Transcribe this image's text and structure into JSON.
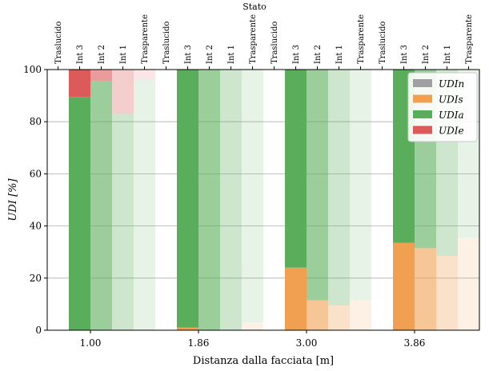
{
  "chart_data": {
    "type": "bar",
    "stacked": true,
    "top_axis_label": "Stato",
    "xlabel": "Distanza dalla facciata [m]",
    "ylabel": "UDI [%]",
    "ylim": [
      0,
      100
    ],
    "yticks": [
      0,
      20,
      40,
      60,
      80,
      100
    ],
    "grid": "horizontal",
    "legend_position": "top-right",
    "states": [
      "Traslucido",
      "Int 3",
      "Int 2",
      "Int 1",
      "Trasparente"
    ],
    "groups": [
      {
        "label": "1.00",
        "bars": [
          {
            "state": "Int 3",
            "UDIn": 0,
            "UDIs": 0,
            "UDIa": 89.5,
            "UDIe": 10.5
          },
          {
            "state": "Int 2",
            "UDIn": 0,
            "UDIs": 0,
            "UDIa": 95.5,
            "UDIe": 4.5
          },
          {
            "state": "Int 1",
            "UDIn": 0,
            "UDIs": 0,
            "UDIa": 83,
            "UDIe": 17
          },
          {
            "state": "Trasparente",
            "UDIn": 0,
            "UDIs": 0,
            "UDIa": 96,
            "UDIe": 4
          }
        ]
      },
      {
        "label": "1.86",
        "bars": [
          {
            "state": "Int 3",
            "UDIn": 0,
            "UDIs": 1,
            "UDIa": 99,
            "UDIe": 0
          },
          {
            "state": "Int 2",
            "UDIn": 0,
            "UDIs": 0,
            "UDIa": 100,
            "UDIe": 0
          },
          {
            "state": "Int 1",
            "UDIn": 0,
            "UDIs": 0,
            "UDIa": 100,
            "UDIe": 0
          },
          {
            "state": "Trasparente",
            "UDIn": 0,
            "UDIs": 3,
            "UDIa": 97,
            "UDIe": 0
          }
        ]
      },
      {
        "label": "3.00",
        "bars": [
          {
            "state": "Int 3",
            "UDIn": 0,
            "UDIs": 24,
            "UDIa": 76,
            "UDIe": 0
          },
          {
            "state": "Int 2",
            "UDIn": 0,
            "UDIs": 11.5,
            "UDIa": 88.5,
            "UDIe": 0
          },
          {
            "state": "Int 1",
            "UDIn": 0,
            "UDIs": 9.5,
            "UDIa": 90.5,
            "UDIe": 0
          },
          {
            "state": "Trasparente",
            "UDIn": 0,
            "UDIs": 11.5,
            "UDIa": 88.5,
            "UDIe": 0
          }
        ]
      },
      {
        "label": "3.86",
        "bars": [
          {
            "state": "Int 3",
            "UDIn": 0,
            "UDIs": 33.5,
            "UDIa": 66.5,
            "UDIe": 0
          },
          {
            "state": "Int 2",
            "UDIn": 0,
            "UDIs": 31.5,
            "UDIa": 68.5,
            "UDIe": 0
          },
          {
            "state": "Int 1",
            "UDIn": 0,
            "UDIs": 28.5,
            "UDIa": 71.5,
            "UDIe": 0
          },
          {
            "state": "Trasparente",
            "UDIn": 0,
            "UDIs": 35.5,
            "UDIa": 64.5,
            "UDIe": 0
          }
        ]
      }
    ],
    "series": [
      {
        "name": "UDIn",
        "color": "#a0a0a0"
      },
      {
        "name": "UDIs",
        "color": "#f0a050"
      },
      {
        "name": "UDIa",
        "color": "#5aad5a"
      },
      {
        "name": "UDIe",
        "color": "#dc5a5a"
      }
    ],
    "state_opacity": {
      "Int 3": 1.0,
      "Int 2": 0.6,
      "Int 1": 0.3,
      "Trasparente": 0.15
    }
  }
}
